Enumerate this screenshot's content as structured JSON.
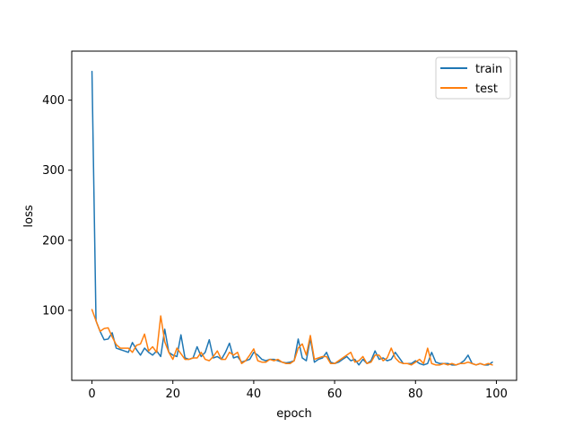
{
  "chart_data": {
    "type": "line",
    "title": "",
    "xlabel": "epoch",
    "ylabel": "loss",
    "xlim": [
      -5,
      105
    ],
    "ylim": [
      0,
      470
    ],
    "xticks": [
      0,
      20,
      40,
      60,
      80,
      100
    ],
    "yticks": [
      100,
      200,
      300,
      400
    ],
    "grid": false,
    "legend_position": "top-right",
    "x": [
      0,
      1,
      2,
      3,
      4,
      5,
      6,
      7,
      8,
      9,
      10,
      11,
      12,
      13,
      14,
      15,
      16,
      17,
      18,
      19,
      20,
      21,
      22,
      23,
      24,
      25,
      26,
      27,
      28,
      29,
      30,
      31,
      32,
      33,
      34,
      35,
      36,
      37,
      38,
      39,
      40,
      41,
      42,
      43,
      44,
      45,
      46,
      47,
      48,
      49,
      50,
      51,
      52,
      53,
      54,
      55,
      56,
      57,
      58,
      59,
      60,
      61,
      62,
      63,
      64,
      65,
      66,
      67,
      68,
      69,
      70,
      71,
      72,
      73,
      74,
      75,
      76,
      77,
      78,
      79,
      80,
      81,
      82,
      83,
      84,
      85,
      86,
      87,
      88,
      89,
      90,
      91,
      92,
      93,
      94,
      95,
      96,
      97,
      98,
      99
    ],
    "series": [
      {
        "name": "train",
        "color": "#1f77b4",
        "values": [
          441,
          85,
          70,
          58,
          59,
          68,
          46,
          44,
          42,
          40,
          54,
          44,
          36,
          46,
          40,
          36,
          42,
          34,
          73,
          40,
          36,
          34,
          65,
          32,
          30,
          32,
          48,
          34,
          40,
          58,
          32,
          34,
          30,
          40,
          53,
          32,
          34,
          26,
          28,
          30,
          40,
          36,
          30,
          28,
          30,
          30,
          28,
          26,
          25,
          26,
          28,
          59,
          32,
          28,
          60,
          26,
          30,
          32,
          40,
          26,
          24,
          26,
          30,
          34,
          28,
          30,
          22,
          30,
          24,
          28,
          42,
          30,
          32,
          28,
          30,
          40,
          32,
          24,
          24,
          24,
          28,
          24,
          22,
          24,
          40,
          26,
          24,
          24,
          24,
          22,
          22,
          24,
          28,
          36,
          24,
          22,
          24,
          22,
          22,
          26
        ]
      },
      {
        "name": "test",
        "color": "#ff7f0e",
        "values": [
          101,
          85,
          70,
          74,
          75,
          62,
          51,
          46,
          46,
          46,
          40,
          50,
          52,
          66,
          42,
          48,
          40,
          92,
          55,
          40,
          30,
          46,
          38,
          30,
          30,
          32,
          32,
          40,
          30,
          28,
          34,
          42,
          30,
          30,
          40,
          36,
          40,
          24,
          28,
          36,
          45,
          28,
          26,
          26,
          30,
          28,
          30,
          26,
          24,
          24,
          28,
          46,
          52,
          36,
          64,
          30,
          32,
          34,
          34,
          24,
          24,
          28,
          32,
          36,
          40,
          26,
          28,
          34,
          24,
          26,
          36,
          36,
          28,
          32,
          46,
          32,
          26,
          24,
          24,
          22,
          26,
          30,
          24,
          46,
          24,
          22,
          22,
          24,
          22,
          24,
          22,
          24,
          24,
          26,
          24,
          22,
          24,
          22,
          24,
          22
        ]
      }
    ]
  }
}
